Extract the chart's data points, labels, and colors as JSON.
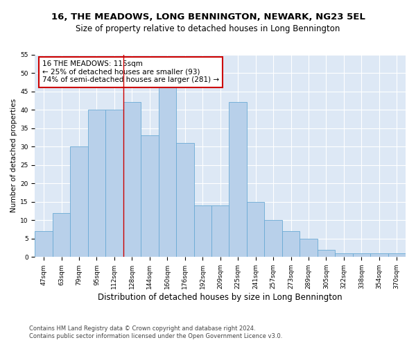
{
  "title": "16, THE MEADOWS, LONG BENNINGTON, NEWARK, NG23 5EL",
  "subtitle": "Size of property relative to detached houses in Long Bennington",
  "xlabel": "Distribution of detached houses by size in Long Bennington",
  "ylabel": "Number of detached properties",
  "categories": [
    "47sqm",
    "63sqm",
    "79sqm",
    "95sqm",
    "112sqm",
    "128sqm",
    "144sqm",
    "160sqm",
    "176sqm",
    "192sqm",
    "209sqm",
    "225sqm",
    "241sqm",
    "257sqm",
    "273sqm",
    "289sqm",
    "305sqm",
    "322sqm",
    "338sqm",
    "354sqm",
    "370sqm"
  ],
  "values": [
    7,
    12,
    30,
    40,
    40,
    42,
    33,
    46,
    31,
    14,
    14,
    42,
    15,
    10,
    7,
    5,
    2,
    1,
    1,
    1,
    1
  ],
  "bar_color": "#b8d0ea",
  "bar_edge_color": "#6aaad4",
  "annotation_text": "16 THE MEADOWS: 115sqm\n← 25% of detached houses are smaller (93)\n74% of semi-detached houses are larger (281) →",
  "annotation_box_color": "#ffffff",
  "annotation_box_edgecolor": "#cc0000",
  "redline_x": 4.5,
  "ylim": [
    0,
    55
  ],
  "yticks": [
    0,
    5,
    10,
    15,
    20,
    25,
    30,
    35,
    40,
    45,
    50,
    55
  ],
  "plot_bg": "#dde8f5",
  "fig_bg": "#ffffff",
  "grid_color": "#ffffff",
  "title_fontsize": 9.5,
  "subtitle_fontsize": 8.5,
  "xlabel_fontsize": 8.5,
  "ylabel_fontsize": 7.5,
  "tick_fontsize": 6.5,
  "annot_fontsize": 7.5,
  "footer_fontsize": 6.0,
  "footer_line1": "Contains HM Land Registry data © Crown copyright and database right 2024.",
  "footer_line2": "Contains public sector information licensed under the Open Government Licence v3.0."
}
